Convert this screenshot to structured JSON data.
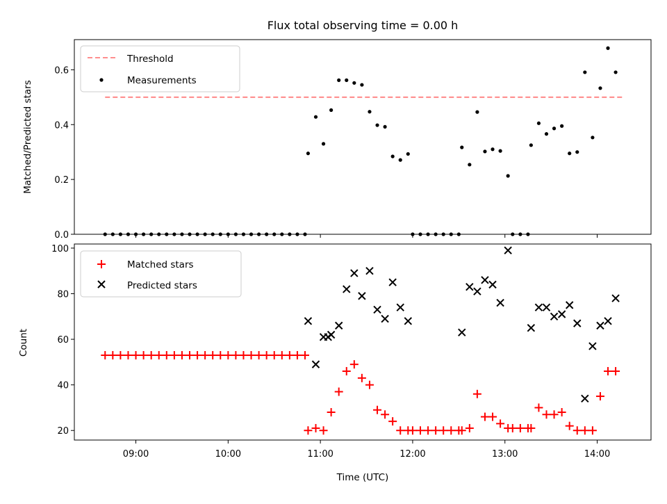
{
  "chart_data": [
    {
      "type": "scatter",
      "title": "Flux total observing time = 0.00 h",
      "xlabel": "",
      "ylabel": "Matched/Predicted stars",
      "xlim": [
        "08:20",
        "14:35"
      ],
      "ylim": [
        0,
        0.71
      ],
      "y_ticks": [
        {
          "value": 0.0,
          "label": "0.0"
        },
        {
          "value": 0.2,
          "label": "0.2"
        },
        {
          "value": 0.4,
          "label": "0.4"
        },
        {
          "value": 0.6,
          "label": "0.6"
        }
      ],
      "x_ticks": [
        "09:00",
        "10:00",
        "11:00",
        "12:00",
        "13:00",
        "14:00"
      ],
      "x_tick_labels_shown": false,
      "legend_position": "upper-left",
      "threshold": {
        "name": "Threshold",
        "value": 0.5,
        "x_range": [
          "08:40",
          "14:17"
        ],
        "color": "#ff7f7f",
        "style": "dashed"
      },
      "series": [
        {
          "name": "Measurements",
          "marker": "dot",
          "color": "#000000",
          "points": [
            [
              "08:40",
              0
            ],
            [
              "08:45",
              0
            ],
            [
              "08:50",
              0
            ],
            [
              "08:55",
              0
            ],
            [
              "09:00",
              0
            ],
            [
              "09:05",
              0
            ],
            [
              "09:10",
              0
            ],
            [
              "09:15",
              0
            ],
            [
              "09:20",
              0
            ],
            [
              "09:25",
              0
            ],
            [
              "09:30",
              0
            ],
            [
              "09:35",
              0
            ],
            [
              "09:40",
              0
            ],
            [
              "09:45",
              0
            ],
            [
              "09:50",
              0
            ],
            [
              "09:55",
              0
            ],
            [
              "10:00",
              0
            ],
            [
              "10:05",
              0
            ],
            [
              "10:10",
              0
            ],
            [
              "10:15",
              0
            ],
            [
              "10:20",
              0
            ],
            [
              "10:25",
              0
            ],
            [
              "10:30",
              0
            ],
            [
              "10:35",
              0
            ],
            [
              "10:40",
              0
            ],
            [
              "10:45",
              0
            ],
            [
              "10:50",
              0
            ],
            [
              "10:52",
              0.295
            ],
            [
              "10:57",
              0.428
            ],
            [
              "11:02",
              0.33
            ],
            [
              "11:07",
              0.453
            ],
            [
              "11:12",
              0.562
            ],
            [
              "11:17",
              0.562
            ],
            [
              "11:22",
              0.552
            ],
            [
              "11:27",
              0.545
            ],
            [
              "11:32",
              0.447
            ],
            [
              "11:37",
              0.398
            ],
            [
              "11:42",
              0.392
            ],
            [
              "11:47",
              0.284
            ],
            [
              "11:52",
              0.271
            ],
            [
              "11:57",
              0.293
            ],
            [
              "12:00",
              0
            ],
            [
              "12:05",
              0
            ],
            [
              "12:10",
              0
            ],
            [
              "12:15",
              0
            ],
            [
              "12:20",
              0
            ],
            [
              "12:25",
              0
            ],
            [
              "12:30",
              0
            ],
            [
              "12:32",
              0.317
            ],
            [
              "12:37",
              0.254
            ],
            [
              "12:42",
              0.446
            ],
            [
              "12:47",
              0.302
            ],
            [
              "12:52",
              0.31
            ],
            [
              "12:57",
              0.304
            ],
            [
              "13:02",
              0.213
            ],
            [
              "13:05",
              0
            ],
            [
              "13:10",
              0
            ],
            [
              "13:15",
              0
            ],
            [
              "13:17",
              0.325
            ],
            [
              "13:22",
              0.405
            ],
            [
              "13:27",
              0.366
            ],
            [
              "13:32",
              0.386
            ],
            [
              "13:37",
              0.395
            ],
            [
              "13:42",
              0.295
            ],
            [
              "13:47",
              0.3
            ],
            [
              "13:52",
              0.591
            ],
            [
              "13:57",
              0.353
            ],
            [
              "14:02",
              0.533
            ],
            [
              "14:07",
              0.679
            ],
            [
              "14:12",
              0.591
            ]
          ]
        }
      ]
    },
    {
      "type": "scatter",
      "title": "",
      "xlabel": "Time (UTC)",
      "ylabel": "Count",
      "xlim": [
        "08:20",
        "14:35"
      ],
      "ylim": [
        15.8,
        101.8
      ],
      "y_ticks": [
        {
          "value": 20,
          "label": "20"
        },
        {
          "value": 40,
          "label": "40"
        },
        {
          "value": 60,
          "label": "60"
        },
        {
          "value": 80,
          "label": "80"
        },
        {
          "value": 100,
          "label": "100"
        }
      ],
      "x_ticks": [
        "09:00",
        "10:00",
        "11:00",
        "12:00",
        "13:00",
        "14:00"
      ],
      "x_tick_labels_shown": true,
      "legend_position": "upper-left",
      "series": [
        {
          "name": "Matched stars",
          "marker": "plus",
          "color": "#ff0000",
          "points": [
            [
              "08:40",
              53
            ],
            [
              "08:45",
              53
            ],
            [
              "08:50",
              53
            ],
            [
              "08:55",
              53
            ],
            [
              "09:00",
              53
            ],
            [
              "09:05",
              53
            ],
            [
              "09:10",
              53
            ],
            [
              "09:15",
              53
            ],
            [
              "09:20",
              53
            ],
            [
              "09:25",
              53
            ],
            [
              "09:30",
              53
            ],
            [
              "09:35",
              53
            ],
            [
              "09:40",
              53
            ],
            [
              "09:45",
              53
            ],
            [
              "09:50",
              53
            ],
            [
              "09:55",
              53
            ],
            [
              "10:00",
              53
            ],
            [
              "10:05",
              53
            ],
            [
              "10:10",
              53
            ],
            [
              "10:15",
              53
            ],
            [
              "10:20",
              53
            ],
            [
              "10:25",
              53
            ],
            [
              "10:30",
              53
            ],
            [
              "10:35",
              53
            ],
            [
              "10:40",
              53
            ],
            [
              "10:45",
              53
            ],
            [
              "10:50",
              53
            ],
            [
              "10:52",
              20
            ],
            [
              "10:57",
              21
            ],
            [
              "11:02",
              20
            ],
            [
              "11:07",
              28
            ],
            [
              "11:12",
              37
            ],
            [
              "11:17",
              46
            ],
            [
              "11:22",
              49
            ],
            [
              "11:27",
              43
            ],
            [
              "11:32",
              40
            ],
            [
              "11:37",
              29
            ],
            [
              "11:42",
              27
            ],
            [
              "11:47",
              24
            ],
            [
              "11:52",
              20
            ],
            [
              "11:57",
              20
            ],
            [
              "12:00",
              20
            ],
            [
              "12:05",
              20
            ],
            [
              "12:10",
              20
            ],
            [
              "12:15",
              20
            ],
            [
              "12:20",
              20
            ],
            [
              "12:25",
              20
            ],
            [
              "12:30",
              20
            ],
            [
              "12:32",
              20
            ],
            [
              "12:37",
              21
            ],
            [
              "12:42",
              36
            ],
            [
              "12:47",
              26
            ],
            [
              "12:52",
              26
            ],
            [
              "12:57",
              23
            ],
            [
              "13:02",
              21
            ],
            [
              "13:05",
              21
            ],
            [
              "13:10",
              21
            ],
            [
              "13:15",
              21
            ],
            [
              "13:17",
              21
            ],
            [
              "13:22",
              30
            ],
            [
              "13:27",
              27
            ],
            [
              "13:32",
              27
            ],
            [
              "13:37",
              28
            ],
            [
              "13:42",
              22
            ],
            [
              "13:47",
              20
            ],
            [
              "13:52",
              20
            ],
            [
              "13:57",
              20
            ],
            [
              "14:02",
              35
            ],
            [
              "14:07",
              46
            ],
            [
              "14:12",
              46
            ]
          ]
        },
        {
          "name": "Predicted stars",
          "marker": "x",
          "color": "#000000",
          "points": [
            [
              "10:52",
              68
            ],
            [
              "10:57",
              49
            ],
            [
              "11:02",
              61
            ],
            [
              "11:05",
              61
            ],
            [
              "11:07",
              62
            ],
            [
              "11:12",
              66
            ],
            [
              "11:17",
              82
            ],
            [
              "11:22",
              89
            ],
            [
              "11:27",
              79
            ],
            [
              "11:32",
              90
            ],
            [
              "11:37",
              73
            ],
            [
              "11:42",
              69
            ],
            [
              "11:47",
              85
            ],
            [
              "11:52",
              74
            ],
            [
              "11:57",
              68
            ],
            [
              "12:32",
              63
            ],
            [
              "12:37",
              83
            ],
            [
              "12:42",
              81
            ],
            [
              "12:47",
              86
            ],
            [
              "12:52",
              84
            ],
            [
              "12:57",
              76
            ],
            [
              "13:02",
              99
            ],
            [
              "13:17",
              65
            ],
            [
              "13:22",
              74
            ],
            [
              "13:27",
              74
            ],
            [
              "13:32",
              70
            ],
            [
              "13:37",
              71
            ],
            [
              "13:42",
              75
            ],
            [
              "13:47",
              67
            ],
            [
              "13:52",
              34
            ],
            [
              "13:57",
              57
            ],
            [
              "14:02",
              66
            ],
            [
              "14:07",
              68
            ],
            [
              "14:12",
              78
            ]
          ]
        }
      ]
    }
  ]
}
